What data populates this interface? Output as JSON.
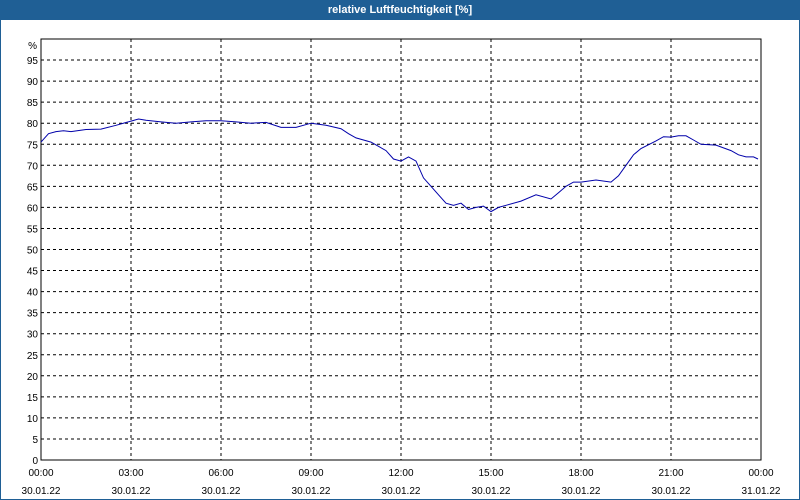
{
  "window": {
    "title": "relative Luftfeuchtigkeit [%]"
  },
  "colors": {
    "titlebar": "#1f5f95",
    "line": "#0000aa",
    "grid": "#000000"
  },
  "chart_data": {
    "type": "line",
    "title": "relative Luftfeuchtigkeit [%]",
    "ylabel": "%",
    "xlabel": "",
    "ylim": [
      0,
      100
    ],
    "yticks": [
      0,
      5,
      10,
      15,
      20,
      25,
      30,
      35,
      40,
      45,
      50,
      55,
      60,
      65,
      70,
      75,
      80,
      85,
      90,
      95
    ],
    "xlim_hours": [
      0,
      24
    ],
    "xticks": [
      {
        "time": "00:00",
        "date": "30.01.22"
      },
      {
        "time": "03:00",
        "date": "30.01.22"
      },
      {
        "time": "06:00",
        "date": "30.01.22"
      },
      {
        "time": "09:00",
        "date": "30.01.22"
      },
      {
        "time": "12:00",
        "date": "30.01.22"
      },
      {
        "time": "15:00",
        "date": "30.01.22"
      },
      {
        "time": "18:00",
        "date": "30.01.22"
      },
      {
        "time": "21:00",
        "date": "30.01.22"
      },
      {
        "time": "00:00",
        "date": "31.01.22"
      }
    ],
    "grid": true,
    "series": [
      {
        "x": [
          0,
          0.25,
          0.5,
          0.75,
          1,
          1.5,
          2,
          2.5,
          3,
          3.25,
          3.5,
          4,
          4.5,
          5,
          5.5,
          6,
          6.5,
          7,
          7.5,
          8,
          8.5,
          9,
          9.5,
          10,
          10.25,
          10.5,
          11,
          11.5,
          11.75,
          12,
          12.25,
          12.5,
          12.75,
          13,
          13.25,
          13.5,
          13.75,
          14,
          14.25,
          14.5,
          14.75,
          15,
          15.25,
          15.5,
          16,
          16.5,
          17,
          17.25,
          17.5,
          17.75,
          18,
          18.5,
          19,
          19.25,
          19.5,
          19.75,
          20,
          20.5,
          20.75,
          21,
          21.25,
          21.5,
          21.75,
          22,
          22.5,
          23,
          23.25,
          23.5,
          23.75,
          23.9
        ],
        "y": [
          75.5,
          77.5,
          78,
          78.2,
          78,
          78.5,
          78.6,
          79.5,
          80.5,
          81,
          80.7,
          80.3,
          80,
          80.3,
          80.6,
          80.6,
          80.3,
          80,
          80.2,
          79,
          79,
          80,
          79.5,
          78.7,
          77.5,
          76.5,
          75.5,
          73.5,
          71.5,
          71,
          72,
          71,
          67,
          65,
          63,
          61,
          60.5,
          61,
          59.5,
          60,
          60.3,
          59,
          60,
          60.5,
          61.5,
          63,
          62,
          63.5,
          65,
          66,
          66,
          66.5,
          66,
          67.5,
          70,
          72.5,
          74,
          75.8,
          76.8,
          76.7,
          77,
          77,
          76,
          75,
          74.8,
          73.5,
          72.5,
          72,
          72,
          71.5
        ]
      }
    ]
  }
}
